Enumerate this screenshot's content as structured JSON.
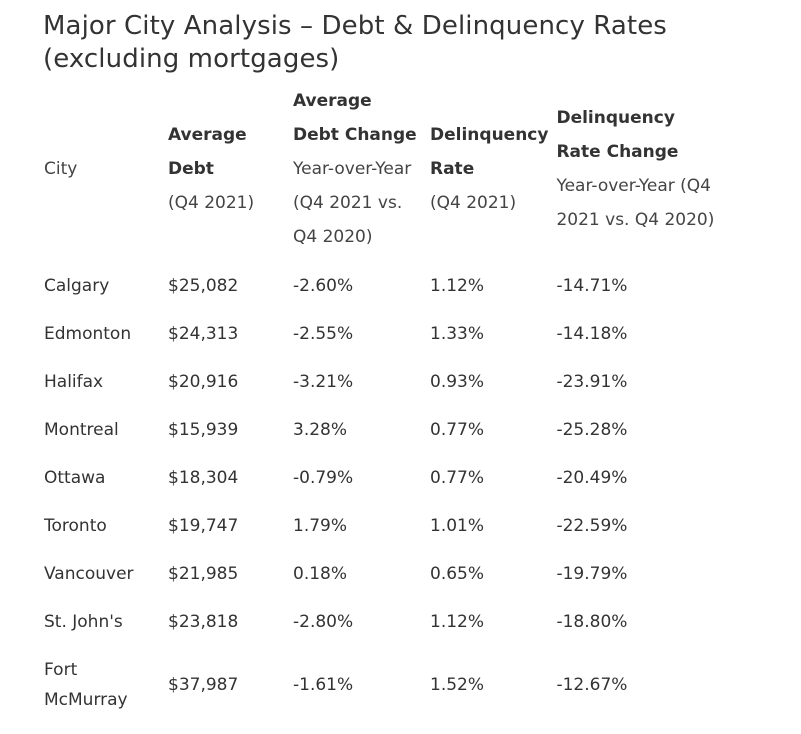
{
  "title": "Major City Analysis – Debt & Delinquency Rates (excluding mortgages)",
  "headers": [
    {
      "bold": "",
      "sub": "City"
    },
    {
      "bold": "Average Debt",
      "sub": "(Q4 2021)"
    },
    {
      "bold": "Average Debt Change",
      "sub": "Year-over-Year (Q4 2021 vs. Q4 2020)"
    },
    {
      "bold": "Delinquency Rate",
      "sub": "(Q4 2021)"
    },
    {
      "bold": "Delinquency Rate Change",
      "sub": "Year-over-Year (Q4 2021 vs. Q4 2020)"
    }
  ],
  "rows": [
    {
      "city": "Calgary",
      "debt": "$25,082",
      "debt_change": "-2.60%",
      "rate": "1.12%",
      "rate_change": "-14.71%"
    },
    {
      "city": "Edmonton",
      "debt": "$24,313",
      "debt_change": "-2.55%",
      "rate": "1.33%",
      "rate_change": "-14.18%"
    },
    {
      "city": "Halifax",
      "debt": "$20,916",
      "debt_change": "-3.21%",
      "rate": "0.93%",
      "rate_change": "-23.91%"
    },
    {
      "city": "Montreal",
      "debt": "$15,939",
      "debt_change": "3.28%",
      "rate": "0.77%",
      "rate_change": "-25.28%"
    },
    {
      "city": "Ottawa",
      "debt": "$18,304",
      "debt_change": "-0.79%",
      "rate": "0.77%",
      "rate_change": "-20.49%"
    },
    {
      "city": "Toronto",
      "debt": "$19,747",
      "debt_change": "1.79%",
      "rate": "1.01%",
      "rate_change": "-22.59%"
    },
    {
      "city": "Vancouver",
      "debt": "$21,985",
      "debt_change": "0.18%",
      "rate": "0.65%",
      "rate_change": "-19.79%"
    },
    {
      "city": "St. John's",
      "debt": "$23,818",
      "debt_change": "-2.80%",
      "rate": "1.12%",
      "rate_change": "-18.80%"
    },
    {
      "city": "Fort McMurray",
      "debt": "$37,987",
      "debt_change": "-1.61%",
      "rate": "1.52%",
      "rate_change": "-12.67%"
    }
  ]
}
